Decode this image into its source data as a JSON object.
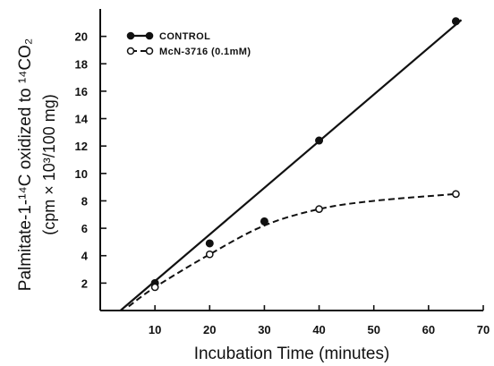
{
  "chart_data": {
    "type": "line",
    "x_axis": {
      "label": "Incubation Time (minutes)",
      "range": [
        0,
        70
      ],
      "ticks": [
        10,
        20,
        30,
        40,
        50,
        60,
        70
      ]
    },
    "y_axis": {
      "label_line1": "Palmitate-1-¹⁴C oxidized to ¹⁴CO₂",
      "label_line2": "(cpm × 10³/100 mg)",
      "range": [
        0,
        22
      ],
      "ticks": [
        2,
        4,
        6,
        8,
        10,
        12,
        14,
        16,
        18,
        20
      ]
    },
    "legend_position": "upper-left",
    "grid": false,
    "series": [
      {
        "name": "CONTROL",
        "marker": "filled-circle",
        "line": "solid",
        "points": [
          {
            "x": 10,
            "y": 2.0
          },
          {
            "x": 20,
            "y": 4.9
          },
          {
            "x": 30,
            "y": 6.5
          },
          {
            "x": 40,
            "y": 12.4
          },
          {
            "x": 65,
            "y": 21.1
          }
        ],
        "fit_line": [
          {
            "x": 3.7,
            "y": 0
          },
          {
            "x": 66,
            "y": 21.2
          }
        ]
      },
      {
        "name": "McN-3716 (0.1mM)",
        "marker": "open-circle",
        "line": "dashed",
        "points": [
          {
            "x": 10,
            "y": 1.7
          },
          {
            "x": 20,
            "y": 4.1
          },
          {
            "x": 40,
            "y": 7.4
          },
          {
            "x": 65,
            "y": 8.5
          }
        ],
        "curve_points": [
          {
            "x": 5.2,
            "y": 0.3
          },
          {
            "x": 10,
            "y": 1.7
          },
          {
            "x": 20,
            "y": 4.1
          },
          {
            "x": 30,
            "y": 6.2
          },
          {
            "x": 40,
            "y": 7.4
          },
          {
            "x": 50,
            "y": 8.0
          },
          {
            "x": 65,
            "y": 8.5
          }
        ]
      }
    ]
  }
}
